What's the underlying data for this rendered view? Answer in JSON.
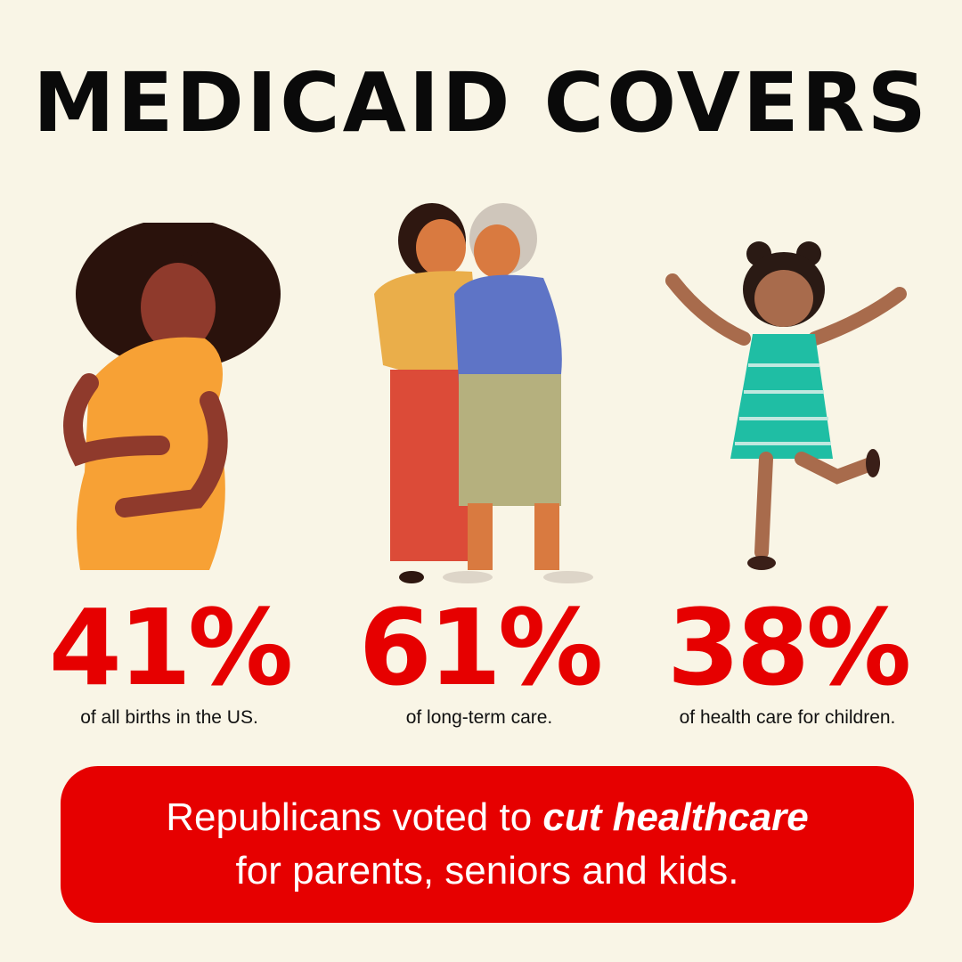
{
  "title": "MEDICAID COVERS",
  "stats": [
    {
      "value": "41%",
      "caption": "of all births in the US."
    },
    {
      "value": "61%",
      "caption": "of long-term care."
    },
    {
      "value": "38%",
      "caption": "of health care for children."
    }
  ],
  "banner": {
    "pre": "Republicans voted to ",
    "emph": "cut healthcare",
    "post": "for parents, seniors and kids."
  },
  "colors": {
    "background": "#f9f5e6",
    "accent": "#e60000"
  }
}
